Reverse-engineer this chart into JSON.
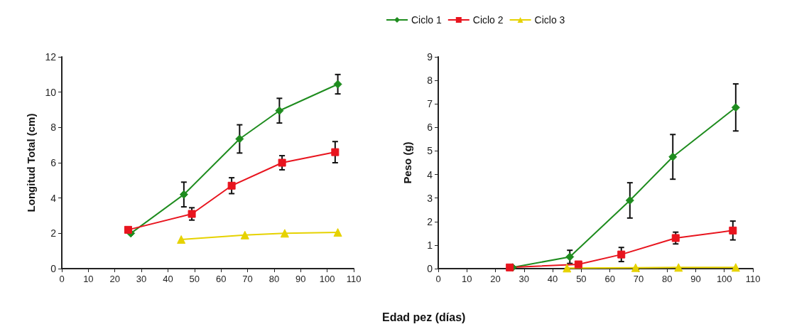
{
  "chart_data": [
    {
      "type": "line",
      "ylabel": "Longitud Total (cm)",
      "xlim": [
        0,
        110
      ],
      "xticks": [
        0,
        10,
        20,
        30,
        40,
        50,
        60,
        70,
        80,
        90,
        100,
        110
      ],
      "ylim": [
        0,
        12
      ],
      "yticks": [
        0,
        2,
        4,
        6,
        8,
        10,
        12
      ],
      "grid": false,
      "legend": false,
      "series": [
        {
          "color": "#1e8c1e",
          "marker": "diamond",
          "x": [
            26,
            46,
            67,
            82,
            104
          ],
          "values": [
            2.0,
            4.2,
            7.35,
            8.95,
            10.45
          ],
          "errors": [
            null,
            0.7,
            0.8,
            0.7,
            0.55
          ]
        },
        {
          "color": "#e8141e",
          "marker": "square",
          "x": [
            25,
            49,
            64,
            83,
            103
          ],
          "values": [
            2.2,
            3.1,
            4.7,
            6.0,
            6.6
          ],
          "errors": [
            null,
            0.35,
            0.45,
            0.4,
            0.6
          ]
        },
        {
          "color": "#e6d200",
          "marker": "triangle",
          "x": [
            45,
            69,
            84,
            104
          ],
          "values": [
            1.65,
            1.9,
            2.0,
            2.05
          ]
        }
      ]
    },
    {
      "type": "line",
      "ylabel": "Peso (g)",
      "xlabel": "Edad pez (días)",
      "xlim": [
        0,
        110
      ],
      "xticks": [
        0,
        10,
        20,
        30,
        40,
        50,
        60,
        70,
        80,
        90,
        100,
        110
      ],
      "ylim": [
        0,
        9
      ],
      "yticks": [
        0,
        1,
        2,
        3,
        4,
        5,
        6,
        7,
        8,
        9
      ],
      "grid": false,
      "legend": "top",
      "series": [
        {
          "name": "Ciclo 1",
          "color": "#1e8c1e",
          "marker": "diamond",
          "x": [
            26,
            46,
            67,
            82,
            104
          ],
          "values": [
            0.05,
            0.5,
            2.9,
            4.75,
            6.85
          ],
          "errors": [
            null,
            0.28,
            0.75,
            0.95,
            1.0
          ]
        },
        {
          "name": "Ciclo 2",
          "color": "#e8141e",
          "marker": "square",
          "x": [
            25,
            49,
            64,
            83,
            103
          ],
          "values": [
            0.05,
            0.18,
            0.6,
            1.3,
            1.62
          ],
          "errors": [
            null,
            null,
            0.3,
            0.25,
            0.4
          ]
        },
        {
          "name": "Ciclo 3",
          "color": "#e6d200",
          "marker": "triangle",
          "x": [
            45,
            69,
            84,
            104
          ],
          "values": [
            0.02,
            0.04,
            0.05,
            0.05
          ]
        }
      ]
    }
  ]
}
